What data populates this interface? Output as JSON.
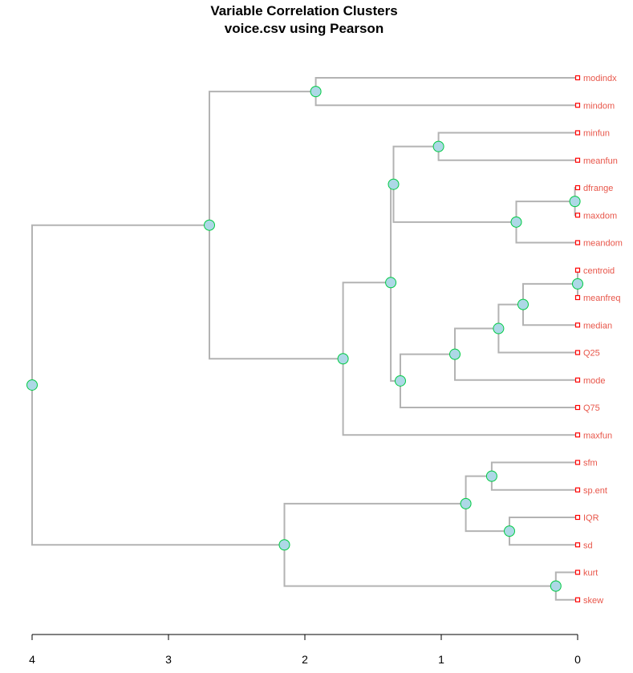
{
  "chart_data": {
    "type": "dendrogram",
    "title": "Variable Correlation Clusters",
    "subtitle": "voice.csv using Pearson",
    "xlim": [
      4,
      0
    ],
    "x_ticks": [
      "4",
      "3",
      "2",
      "1",
      "0"
    ],
    "x_tick_values": [
      4,
      3,
      2,
      1,
      0
    ],
    "leaves": [
      "modindx",
      "mindom",
      "minfun",
      "meanfun",
      "dfrange",
      "maxdom",
      "meandom",
      "centroid",
      "meanfreq",
      "median",
      "Q25",
      "mode",
      "Q75",
      "maxfun",
      "sfm",
      "sp.ent",
      "IQR",
      "sd",
      "kurt",
      "skew"
    ],
    "merges": [
      {
        "id": "dfrange_maxdom",
        "height": 0.02,
        "children": [
          "dfrange",
          "maxdom"
        ]
      },
      {
        "id": "centroid_meanfreq",
        "height": 0.0,
        "children": [
          "centroid",
          "meanfreq"
        ]
      },
      {
        "id": "kurt_skew",
        "height": 0.16,
        "children": [
          "kurt",
          "skew"
        ]
      },
      {
        "id": "cm_median",
        "height": 0.4,
        "children": [
          "centroid_meanfreq",
          "median"
        ]
      },
      {
        "id": "dm_meandom",
        "height": 0.45,
        "children": [
          "dfrange_maxdom",
          "meandom"
        ]
      },
      {
        "id": "IQR_sd",
        "height": 0.5,
        "children": [
          "IQR",
          "sd"
        ]
      },
      {
        "id": "cmm_Q25",
        "height": 0.58,
        "children": [
          "cm_median",
          "Q25"
        ]
      },
      {
        "id": "sfm_spent",
        "height": 0.63,
        "children": [
          "sfm",
          "sp.ent"
        ]
      },
      {
        "id": "spec_iqr",
        "height": 0.82,
        "children": [
          "sfm_spent",
          "IQR_sd"
        ]
      },
      {
        "id": "cq_mode",
        "height": 0.9,
        "children": [
          "cmm_Q25",
          "mode"
        ]
      },
      {
        "id": "minfun_meanfun",
        "height": 1.02,
        "children": [
          "minfun",
          "meanfun"
        ]
      },
      {
        "id": "cqm_Q75",
        "height": 1.3,
        "children": [
          "cq_mode",
          "Q75"
        ]
      },
      {
        "id": "fun_dom",
        "height": 1.35,
        "children": [
          "minfun_meanfun",
          "dm_meandom"
        ]
      },
      {
        "id": "fun_freq",
        "height": 1.37,
        "children": [
          "fun_dom",
          "cqm_Q75"
        ]
      },
      {
        "id": "ff_maxfun",
        "height": 1.72,
        "children": [
          "fun_freq",
          "maxfun"
        ]
      },
      {
        "id": "modindx_mindom",
        "height": 1.92,
        "children": [
          "modindx",
          "mindom"
        ]
      },
      {
        "id": "spectral",
        "height": 2.15,
        "children": [
          "spec_iqr",
          "kurt_skew"
        ]
      },
      {
        "id": "upper",
        "height": 2.7,
        "children": [
          "modindx_mindom",
          "ff_maxfun"
        ]
      },
      {
        "id": "root",
        "height": 4.0,
        "children": [
          "upper",
          "spectral"
        ]
      }
    ],
    "colors": {
      "branch": "#b3b3b3",
      "node_fill": "#add8e6",
      "node_stroke": "#00cc44",
      "leaf_label": "#e8564a",
      "leaf_marker": "#ff0000",
      "axis": "#000000"
    },
    "grid": false,
    "legend": "none"
  }
}
